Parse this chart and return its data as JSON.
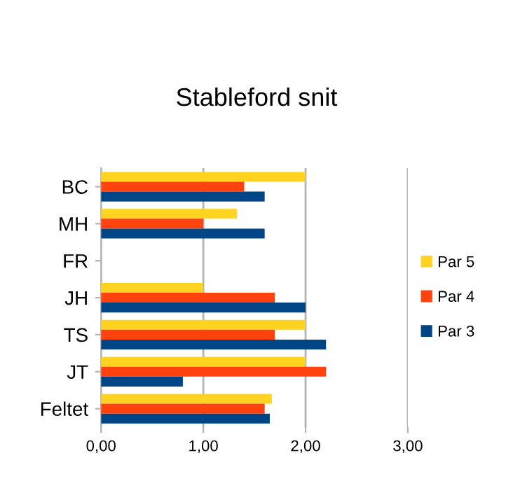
{
  "chart_data": {
    "type": "bar",
    "orientation": "horizontal",
    "title": "Stableford snit",
    "categories": [
      "BC",
      "MH",
      "FR",
      "JH",
      "TS",
      "JT",
      "Feltet"
    ],
    "series": [
      {
        "name": "Par 5",
        "color": "#ffd320",
        "values": [
          2.0,
          1.33,
          null,
          1.0,
          2.0,
          2.0,
          1.67
        ]
      },
      {
        "name": "Par 4",
        "color": "#ff420e",
        "values": [
          1.4,
          1.0,
          null,
          1.7,
          1.7,
          2.2,
          1.6
        ]
      },
      {
        "name": "Par 3",
        "color": "#004586",
        "values": [
          1.6,
          1.6,
          null,
          2.0,
          2.2,
          0.8,
          1.65
        ]
      }
    ],
    "xlim": [
      0,
      3
    ],
    "xticks": [
      {
        "value": 0,
        "label": "0,00"
      },
      {
        "value": 1,
        "label": "1,00"
      },
      {
        "value": 2,
        "label": "2,00"
      },
      {
        "value": 3,
        "label": "3,00"
      }
    ],
    "grid": "x",
    "legend": "right"
  }
}
